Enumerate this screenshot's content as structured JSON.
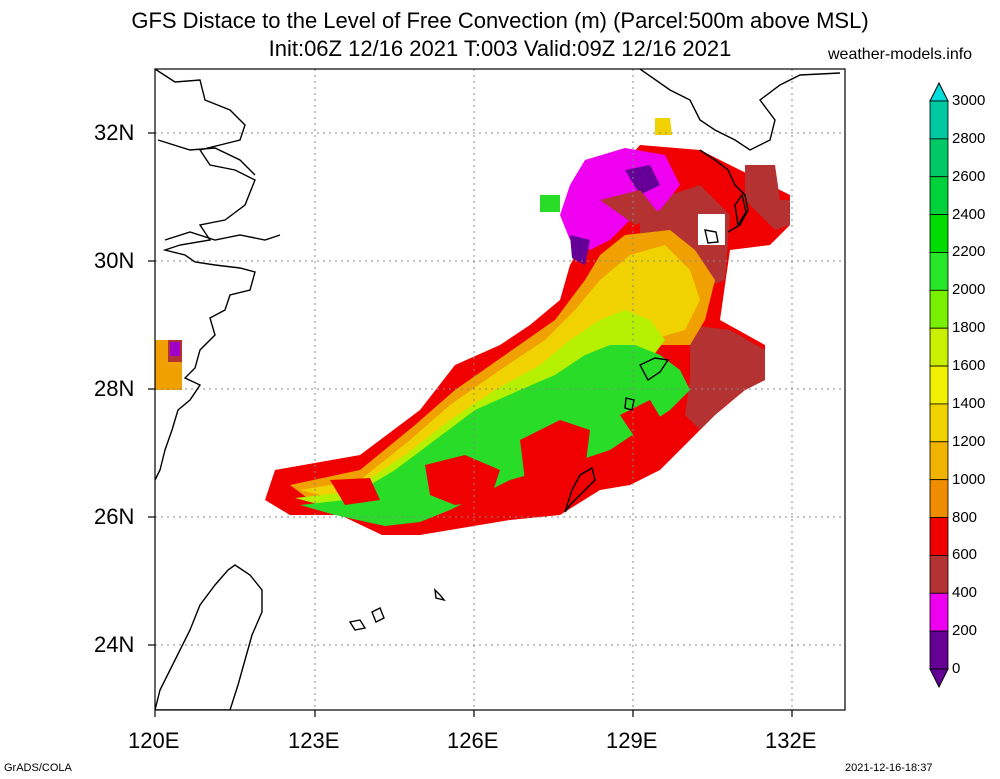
{
  "title_line1": "GFS Distace to the Level of Free Convection (m) (Parcel:500m above MSL)",
  "title_line2": "Init:06Z 12/16 2021 T:003 Valid:09Z 12/16 2021",
  "site": "weather-models.info",
  "lat_labels": [
    "32N",
    "30N",
    "28N",
    "26N",
    "24N"
  ],
  "lon_labels": [
    "120E",
    "123E",
    "126E",
    "129E",
    "132E"
  ],
  "colorbar": {
    "labels": [
      "3000",
      "2800",
      "2600",
      "2400",
      "2200",
      "2000",
      "1800",
      "1600",
      "1400",
      "1200",
      "1000",
      "800",
      "600",
      "400",
      "200",
      "0"
    ],
    "colors_top_to_bottom": [
      "#00dcdc",
      "#00c8a0",
      "#00c864",
      "#00d23c",
      "#00dc00",
      "#28e628",
      "#78f000",
      "#c8f000",
      "#f0f000",
      "#f0d200",
      "#f0b400",
      "#f08c00",
      "#f00000",
      "#b43232",
      "#f000f0",
      "#640096"
    ]
  },
  "footer_left": "GrADS/COLA",
  "footer_right": "2021-12-16-18:37"
}
